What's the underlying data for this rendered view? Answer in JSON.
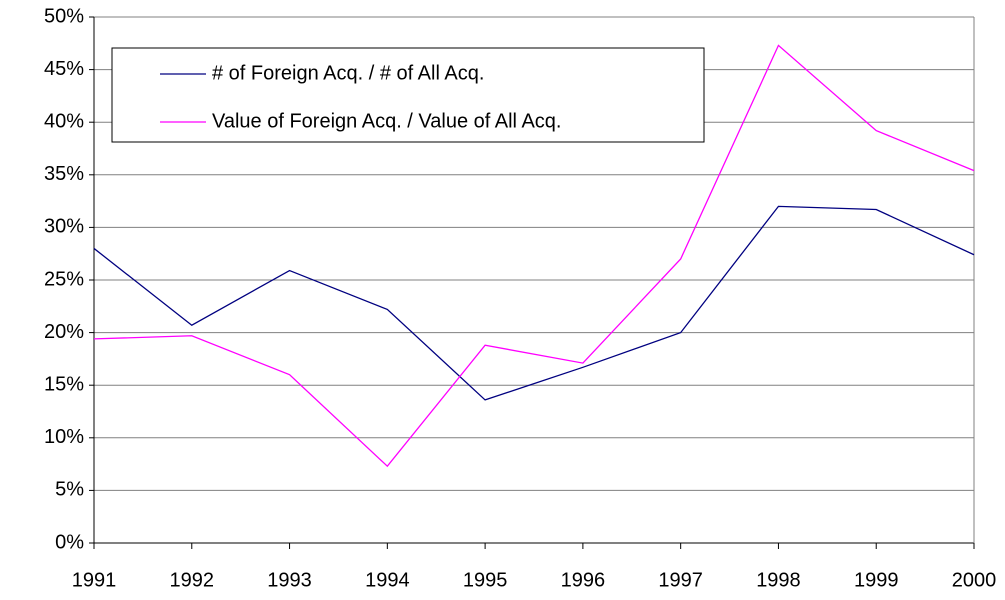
{
  "chart_data": {
    "type": "line",
    "categories": [
      "1991",
      "1992",
      "1993",
      "1994",
      "1995",
      "1996",
      "1997",
      "1998",
      "1999",
      "2000"
    ],
    "series": [
      {
        "name": "# of Foreign Acq. / # of All Acq.",
        "color": "#000080",
        "values": [
          28.0,
          20.7,
          25.9,
          22.2,
          13.6,
          16.7,
          20.0,
          32.0,
          31.7,
          27.4
        ]
      },
      {
        "name": "Value of Foreign Acq. / Value of All Acq.",
        "color": "#ff00ff",
        "values": [
          19.4,
          19.7,
          16.0,
          7.3,
          18.8,
          17.1,
          27.0,
          47.3,
          39.2,
          35.4
        ]
      }
    ],
    "ylim": [
      0,
      50
    ],
    "yticks": [
      {
        "value": 0,
        "label": "0%"
      },
      {
        "value": 5,
        "label": "5%"
      },
      {
        "value": 10,
        "label": "10%"
      },
      {
        "value": 15,
        "label": "15%"
      },
      {
        "value": 20,
        "label": "20%"
      },
      {
        "value": 25,
        "label": "25%"
      },
      {
        "value": 30,
        "label": "30%"
      },
      {
        "value": 35,
        "label": "35%"
      },
      {
        "value": 40,
        "label": "40%"
      },
      {
        "value": 45,
        "label": "45%"
      },
      {
        "value": 50,
        "label": "50%"
      }
    ],
    "grid": true
  }
}
